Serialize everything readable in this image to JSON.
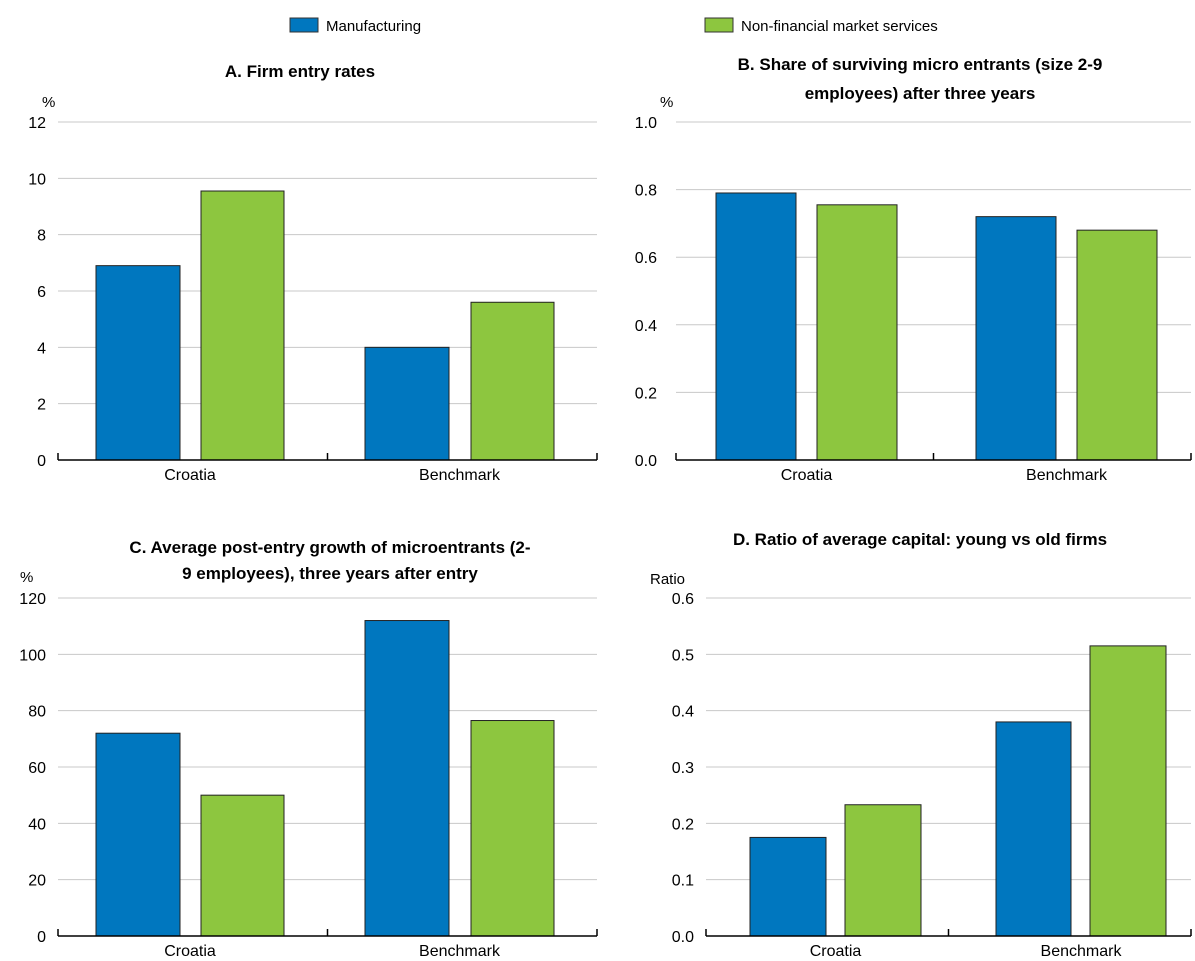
{
  "legend": {
    "items": [
      {
        "label": "Manufacturing",
        "color": "#0077bf"
      },
      {
        "label": "Non-financial market services",
        "color": "#8dc63f"
      }
    ]
  },
  "chart_data": [
    {
      "type": "bar",
      "title": [
        "A. Firm entry rates"
      ],
      "unit_label": "%",
      "categories": [
        "Croatia",
        "Benchmark"
      ],
      "series": [
        {
          "name": "Manufacturing",
          "values": [
            6.9,
            4.0
          ]
        },
        {
          "name": "Non-financial market services",
          "values": [
            9.55,
            5.6
          ]
        }
      ],
      "ylim": [
        0,
        12
      ],
      "yticks": [
        "0",
        "2",
        "4",
        "6",
        "8",
        "10",
        "12"
      ],
      "grid": true
    },
    {
      "type": "bar",
      "title": [
        "B. Share of surviving micro entrants (size 2-9",
        "employees) after three years"
      ],
      "unit_label": "%",
      "categories": [
        "Croatia",
        "Benchmark"
      ],
      "series": [
        {
          "name": "Manufacturing",
          "values": [
            0.79,
            0.72
          ]
        },
        {
          "name": "Non-financial market services",
          "values": [
            0.755,
            0.68
          ]
        }
      ],
      "ylim": [
        0,
        1.0
      ],
      "yticks": [
        "0.0",
        "0.2",
        "0.4",
        "0.6",
        "0.8",
        "1.0"
      ],
      "grid": true
    },
    {
      "type": "bar",
      "title": [
        "C. Average post-entry growth of microentrants (2-",
        "9 employees), three years after entry"
      ],
      "unit_label": "%",
      "categories": [
        "Croatia",
        "Benchmark"
      ],
      "series": [
        {
          "name": "Manufacturing",
          "values": [
            72,
            112
          ]
        },
        {
          "name": "Non-financial market services",
          "values": [
            50,
            76.5
          ]
        }
      ],
      "ylim": [
        0,
        120
      ],
      "yticks": [
        "0",
        "20",
        "40",
        "60",
        "80",
        "100",
        "120"
      ],
      "grid": true
    },
    {
      "type": "bar",
      "title": [
        "D. Ratio of average capital: young vs old firms"
      ],
      "unit_label": "Ratio",
      "categories": [
        "Croatia",
        "Benchmark"
      ],
      "series": [
        {
          "name": "Manufacturing",
          "values": [
            0.175,
            0.38
          ]
        },
        {
          "name": "Non-financial market services",
          "values": [
            0.233,
            0.515
          ]
        }
      ],
      "ylim": [
        0,
        0.6
      ],
      "yticks": [
        "0.0",
        "0.1",
        "0.2",
        "0.3",
        "0.4",
        "0.5",
        "0.6"
      ],
      "grid": true
    }
  ]
}
